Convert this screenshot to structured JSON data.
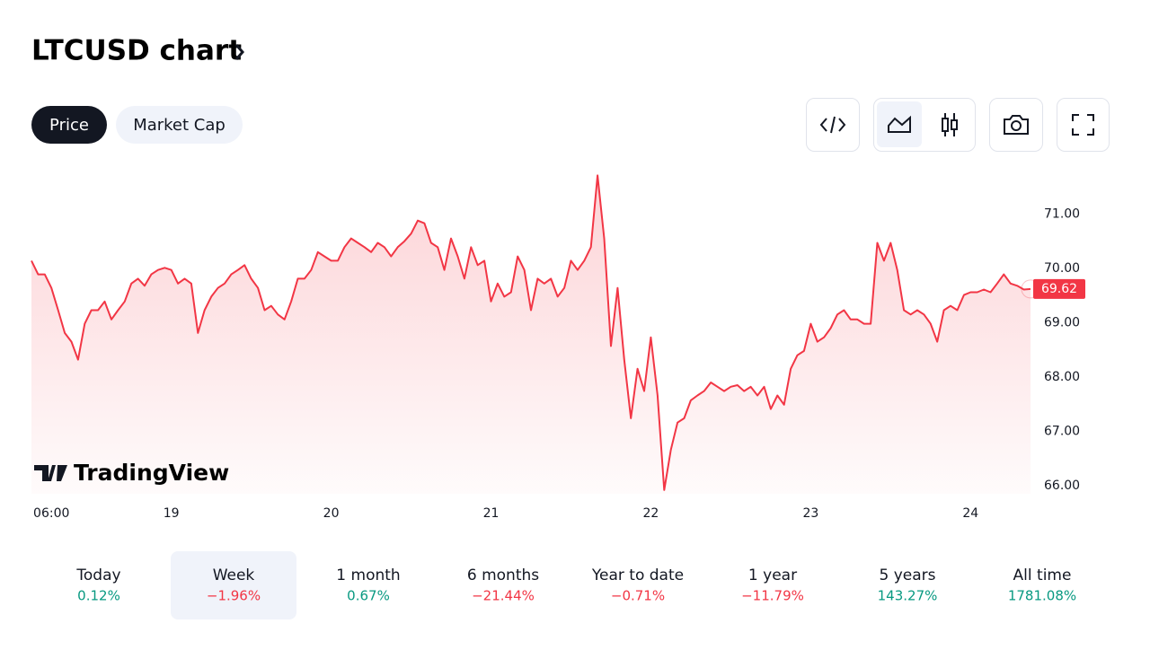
{
  "page": {
    "title": "LTCUSD chart",
    "tabs": [
      "Price",
      "Market Cap"
    ],
    "active_tab": 0,
    "watermark": "TradingView",
    "periods": [
      {
        "label": "Today",
        "change": "0.12%"
      },
      {
        "label": "Week",
        "change": "−1.96%"
      },
      {
        "label": "1 month",
        "change": "0.67%"
      },
      {
        "label": "6 months",
        "change": "−21.44%"
      },
      {
        "label": "Year to date",
        "change": "−0.71%"
      },
      {
        "label": "1 year",
        "change": "−11.79%"
      },
      {
        "label": "5 years",
        "change": "143.27%"
      },
      {
        "label": "All time",
        "change": "1781.08%"
      }
    ],
    "selected_period": 1
  },
  "chart_data": {
    "type": "line",
    "categories": [
      null,
      null,
      null,
      "06:00",
      null,
      null,
      null,
      null,
      null,
      null,
      null,
      null,
      null,
      null,
      null,
      null,
      null,
      null,
      null,
      null,
      null,
      "19",
      null,
      null,
      null,
      null,
      null,
      null,
      null,
      null,
      null,
      null,
      null,
      null,
      null,
      null,
      null,
      null,
      null,
      null,
      null,
      null,
      null,
      null,
      null,
      "20",
      null,
      null,
      null,
      null,
      null,
      null,
      null,
      null,
      null,
      null,
      null,
      null,
      null,
      null,
      null,
      null,
      null,
      null,
      null,
      null,
      null,
      null,
      null,
      "21",
      null,
      null,
      null,
      null,
      null,
      null,
      null,
      null,
      null,
      null,
      null,
      null,
      null,
      null,
      null,
      null,
      null,
      null,
      null,
      null,
      null,
      null,
      null,
      "22",
      null,
      null,
      null,
      null,
      null,
      null,
      null,
      null,
      null,
      null,
      null,
      null,
      null,
      null,
      null,
      null,
      null,
      null,
      null,
      null,
      null,
      null,
      null,
      "23",
      null,
      null,
      null,
      null,
      null,
      null,
      null,
      null,
      null,
      null,
      null,
      null,
      null,
      null,
      null,
      null,
      null,
      null,
      null,
      null,
      null,
      null,
      null,
      "24",
      null,
      null,
      null,
      null,
      null,
      null,
      null,
      null,
      null
    ],
    "series": [
      {
        "name": "LTCUSD",
        "color": "#f23645",
        "values": [
          70.14,
          69.89,
          69.89,
          69.64,
          69.23,
          68.81,
          68.65,
          68.32,
          68.98,
          69.23,
          69.23,
          69.39,
          69.06,
          69.23,
          69.39,
          69.72,
          69.81,
          69.68,
          69.89,
          69.97,
          70.01,
          69.97,
          69.72,
          69.81,
          69.72,
          68.81,
          69.23,
          69.48,
          69.64,
          69.72,
          69.89,
          69.97,
          70.06,
          69.81,
          69.64,
          69.23,
          69.31,
          69.15,
          69.06,
          69.39,
          69.81,
          69.81,
          69.97,
          70.3,
          70.22,
          70.14,
          70.14,
          70.39,
          70.55,
          70.47,
          70.39,
          70.3,
          70.47,
          70.39,
          70.22,
          70.39,
          70.5,
          70.64,
          70.88,
          70.83,
          70.47,
          70.39,
          69.97,
          70.55,
          70.22,
          69.81,
          70.39,
          70.06,
          70.14,
          69.39,
          69.72,
          69.48,
          69.56,
          70.22,
          69.97,
          69.23,
          69.81,
          69.72,
          69.81,
          69.48,
          69.64,
          70.14,
          69.97,
          70.14,
          70.39,
          71.71,
          70.55,
          68.57,
          69.64,
          68.32,
          67.24,
          68.15,
          67.74,
          68.73,
          67.66,
          65.92,
          66.66,
          67.16,
          67.24,
          67.57,
          67.66,
          67.74,
          67.9,
          67.82,
          67.74,
          67.82,
          67.85,
          67.74,
          67.82,
          67.66,
          67.82,
          67.41,
          67.66,
          67.49,
          68.15,
          68.4,
          68.48,
          68.98,
          68.65,
          68.73,
          68.9,
          69.15,
          69.23,
          69.06,
          69.06,
          68.98,
          68.98,
          70.47,
          70.14,
          70.47,
          69.97,
          69.23,
          69.15,
          69.23,
          69.15,
          68.98,
          68.65,
          69.23,
          69.31,
          69.23,
          69.51,
          69.56,
          69.56,
          69.61,
          69.56,
          69.72,
          69.89,
          69.72,
          69.68,
          69.61,
          69.62
        ]
      }
    ],
    "last_value": 69.62,
    "ylim": [
      65.85,
      71.8
    ],
    "yticks": [
      {
        "value": 66,
        "label": "66.00"
      },
      {
        "value": 67,
        "label": "67.00"
      },
      {
        "value": 68,
        "label": "68.00"
      },
      {
        "value": 69,
        "label": "69.00"
      },
      {
        "value": 70,
        "label": "70.00"
      },
      {
        "value": 71,
        "label": "71.00"
      }
    ],
    "grid": false
  }
}
